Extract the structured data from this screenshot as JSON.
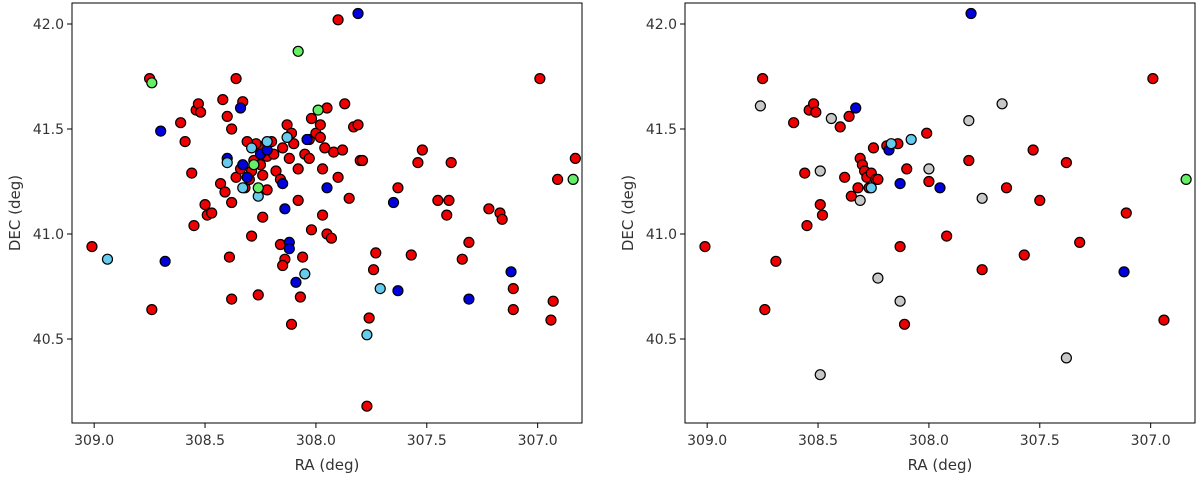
{
  "chart_data": [
    {
      "type": "scatter",
      "xlabel": "RA (deg)",
      "ylabel": "DEC (deg)",
      "xlim": [
        309.1,
        306.8
      ],
      "ylim": [
        40.1,
        42.1
      ],
      "xticks": [
        309.0,
        308.5,
        308.0,
        307.5,
        307.0
      ],
      "xtick_labels": [
        "309.0",
        "308.5",
        "308.0",
        "307.5",
        "307.0"
      ],
      "yticks": [
        40.5,
        41.0,
        41.5,
        42.0
      ],
      "ytick_labels": [
        "40.5",
        "41.0",
        "41.5",
        "42.0"
      ],
      "grid": false,
      "series": [
        {
          "color": "#ee0000",
          "points": [
            [
              309.01,
              40.94
            ],
            [
              308.75,
              41.74
            ],
            [
              308.74,
              40.64
            ],
            [
              308.61,
              41.53
            ],
            [
              308.59,
              41.44
            ],
            [
              308.56,
              41.29
            ],
            [
              308.54,
              41.59
            ],
            [
              308.53,
              41.62
            ],
            [
              308.52,
              41.58
            ],
            [
              308.55,
              41.04
            ],
            [
              308.5,
              41.14
            ],
            [
              308.49,
              41.09
            ],
            [
              308.47,
              41.1
            ],
            [
              308.42,
              41.64
            ],
            [
              308.4,
              41.56
            ],
            [
              308.38,
              41.5
            ],
            [
              308.43,
              41.24
            ],
            [
              308.41,
              41.2
            ],
            [
              308.38,
              41.15
            ],
            [
              308.36,
              41.27
            ],
            [
              308.34,
              41.31
            ],
            [
              308.32,
              41.22
            ],
            [
              308.3,
              41.26
            ],
            [
              308.28,
              41.35
            ],
            [
              308.26,
              41.42
            ],
            [
              308.25,
              41.33
            ],
            [
              308.24,
              41.28
            ],
            [
              308.22,
              41.37
            ],
            [
              308.2,
              41.44
            ],
            [
              308.18,
              41.3
            ],
            [
              308.16,
              41.26
            ],
            [
              308.15,
              41.41
            ],
            [
              308.12,
              41.36
            ],
            [
              308.1,
              41.43
            ],
            [
              308.08,
              41.31
            ],
            [
              308.05,
              41.38
            ],
            [
              308.03,
              41.45
            ],
            [
              308.13,
              41.52
            ],
            [
              308.11,
              41.48
            ],
            [
              308.02,
              41.55
            ],
            [
              308.0,
              41.48
            ],
            [
              307.98,
              41.52
            ],
            [
              307.95,
              41.6
            ],
            [
              307.92,
              41.39
            ],
            [
              307.9,
              41.27
            ],
            [
              307.85,
              41.17
            ],
            [
              307.8,
              41.35
            ],
            [
              308.36,
              41.74
            ],
            [
              308.39,
              40.89
            ],
            [
              308.38,
              40.69
            ],
            [
              308.29,
              40.99
            ],
            [
              308.24,
              41.08
            ],
            [
              308.27,
              41.43
            ],
            [
              308.22,
              41.21
            ],
            [
              308.16,
              40.95
            ],
            [
              308.14,
              40.88
            ],
            [
              308.15,
              40.85
            ],
            [
              308.11,
              40.57
            ],
            [
              308.06,
              40.89
            ],
            [
              308.02,
              41.02
            ],
            [
              307.97,
              41.09
            ],
            [
              307.95,
              41.0
            ],
            [
              307.93,
              40.98
            ],
            [
              307.97,
              41.31
            ],
            [
              307.98,
              41.46
            ],
            [
              307.9,
              42.02
            ],
            [
              307.87,
              41.62
            ],
            [
              307.83,
              41.51
            ],
            [
              307.79,
              41.35
            ],
            [
              307.81,
              41.52
            ],
            [
              307.76,
              40.6
            ],
            [
              307.74,
              40.83
            ],
            [
              307.73,
              40.91
            ],
            [
              307.63,
              41.22
            ],
            [
              307.57,
              40.9
            ],
            [
              307.52,
              41.4
            ],
            [
              307.54,
              41.34
            ],
            [
              307.45,
              41.16
            ],
            [
              307.41,
              41.09
            ],
            [
              307.4,
              41.16
            ],
            [
              307.39,
              41.34
            ],
            [
              307.34,
              40.88
            ],
            [
              307.31,
              40.96
            ],
            [
              307.22,
              41.12
            ],
            [
              307.17,
              41.1
            ],
            [
              307.16,
              41.07
            ],
            [
              307.11,
              40.74
            ],
            [
              307.11,
              40.64
            ],
            [
              306.99,
              41.74
            ],
            [
              306.93,
              40.68
            ],
            [
              306.91,
              41.26
            ],
            [
              306.94,
              40.59
            ],
            [
              306.83,
              41.36
            ],
            [
              307.77,
              40.18
            ],
            [
              308.29,
              41.3
            ],
            [
              308.19,
              41.38
            ],
            [
              308.08,
              41.16
            ],
            [
              307.96,
              41.41
            ],
            [
              307.88,
              41.4
            ],
            [
              308.07,
              40.7
            ],
            [
              308.26,
              40.71
            ],
            [
              308.33,
              41.63
            ],
            [
              308.03,
              41.36
            ],
            [
              308.31,
              41.44
            ]
          ]
        },
        {
          "color": "#0000dd",
          "points": [
            [
              308.7,
              41.49
            ],
            [
              308.68,
              40.87
            ],
            [
              308.34,
              41.6
            ],
            [
              308.4,
              41.36
            ],
            [
              308.33,
              41.33
            ],
            [
              308.31,
              41.27
            ],
            [
              308.25,
              41.38
            ],
            [
              308.15,
              41.24
            ],
            [
              308.14,
              41.12
            ],
            [
              308.12,
              40.96
            ],
            [
              308.12,
              40.93
            ],
            [
              308.09,
              40.77
            ],
            [
              308.04,
              41.45
            ],
            [
              307.95,
              41.22
            ],
            [
              307.81,
              42.05
            ],
            [
              307.65,
              41.15
            ],
            [
              307.63,
              40.73
            ],
            [
              307.31,
              40.69
            ],
            [
              307.12,
              40.82
            ],
            [
              308.22,
              41.4
            ]
          ]
        },
        {
          "color": "#66ccee",
          "points": [
            [
              308.94,
              40.88
            ],
            [
              308.4,
              41.34
            ],
            [
              308.29,
              41.41
            ],
            [
              308.26,
              41.18
            ],
            [
              308.22,
              41.44
            ],
            [
              308.13,
              41.46
            ],
            [
              308.05,
              40.81
            ],
            [
              307.77,
              40.52
            ],
            [
              307.71,
              40.74
            ],
            [
              308.33,
              41.22
            ]
          ]
        },
        {
          "color": "#66ee66",
          "points": [
            [
              308.74,
              41.72
            ],
            [
              308.08,
              41.87
            ],
            [
              307.99,
              41.59
            ],
            [
              308.28,
              41.33
            ],
            [
              308.26,
              41.22
            ],
            [
              306.84,
              41.26
            ]
          ]
        }
      ]
    },
    {
      "type": "scatter",
      "xlabel": "RA (deg)",
      "ylabel": "DEC (deg)",
      "xlim": [
        309.1,
        306.8
      ],
      "ylim": [
        40.1,
        42.1
      ],
      "xticks": [
        309.0,
        308.5,
        308.0,
        307.5,
        307.0
      ],
      "xtick_labels": [
        "309.0",
        "308.5",
        "308.0",
        "307.5",
        "307.0"
      ],
      "yticks": [
        40.5,
        41.0,
        41.5,
        42.0
      ],
      "ytick_labels": [
        "40.5",
        "41.0",
        "41.5",
        "42.0"
      ],
      "grid": false,
      "series": [
        {
          "color": "#ee0000",
          "points": [
            [
              309.01,
              40.94
            ],
            [
              308.75,
              41.74
            ],
            [
              308.74,
              40.64
            ],
            [
              308.61,
              41.53
            ],
            [
              308.56,
              41.29
            ],
            [
              308.54,
              41.59
            ],
            [
              308.52,
              41.62
            ],
            [
              308.51,
              41.58
            ],
            [
              308.55,
              41.04
            ],
            [
              308.49,
              41.14
            ],
            [
              308.48,
              41.09
            ],
            [
              308.69,
              40.87
            ],
            [
              308.4,
              41.51
            ],
            [
              308.36,
              41.56
            ],
            [
              308.38,
              41.27
            ],
            [
              308.35,
              41.18
            ],
            [
              308.31,
              41.36
            ],
            [
              308.3,
              41.33
            ],
            [
              308.29,
              41.3
            ],
            [
              308.28,
              41.27
            ],
            [
              308.27,
              41.22
            ],
            [
              308.26,
              41.29
            ],
            [
              308.24,
              41.26
            ],
            [
              308.25,
              41.41
            ],
            [
              308.19,
              41.42
            ],
            [
              308.14,
              41.43
            ],
            [
              308.1,
              41.31
            ],
            [
              308.13,
              40.94
            ],
            [
              308.11,
              40.57
            ],
            [
              308.01,
              41.48
            ],
            [
              308.0,
              41.25
            ],
            [
              307.92,
              40.99
            ],
            [
              307.82,
              41.35
            ],
            [
              307.76,
              40.83
            ],
            [
              307.65,
              41.22
            ],
            [
              307.57,
              40.9
            ],
            [
              307.53,
              41.4
            ],
            [
              307.5,
              41.16
            ],
            [
              307.38,
              41.34
            ],
            [
              307.32,
              40.96
            ],
            [
              307.11,
              41.1
            ],
            [
              306.99,
              41.74
            ],
            [
              306.94,
              40.59
            ],
            [
              308.32,
              41.22
            ],
            [
              308.23,
              41.26
            ]
          ]
        },
        {
          "color": "#0000dd",
          "points": [
            [
              308.33,
              41.6
            ],
            [
              308.18,
              41.4
            ],
            [
              308.13,
              41.24
            ],
            [
              307.95,
              41.22
            ],
            [
              307.81,
              42.05
            ],
            [
              307.12,
              40.82
            ]
          ]
        },
        {
          "color": "#66ccee",
          "points": [
            [
              308.17,
              41.43
            ],
            [
              308.08,
              41.45
            ],
            [
              308.26,
              41.22
            ]
          ]
        },
        {
          "color": "#66ee66",
          "points": [
            [
              306.84,
              41.26
            ]
          ]
        },
        {
          "color": "#c8c8c8",
          "points": [
            [
              308.76,
              41.61
            ],
            [
              308.49,
              41.3
            ],
            [
              308.44,
              41.55
            ],
            [
              308.31,
              41.16
            ],
            [
              308.23,
              40.79
            ],
            [
              308.13,
              40.68
            ],
            [
              308.0,
              41.31
            ],
            [
              307.82,
              41.54
            ],
            [
              307.76,
              41.17
            ],
            [
              307.67,
              41.62
            ],
            [
              307.38,
              40.41
            ],
            [
              308.49,
              40.33
            ]
          ]
        }
      ]
    }
  ]
}
